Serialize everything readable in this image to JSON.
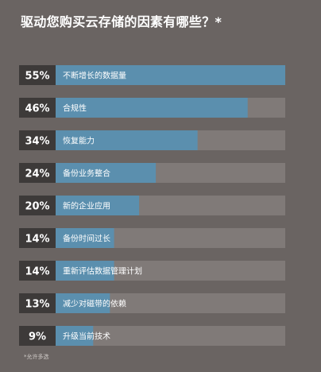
{
  "chart_data": {
    "type": "bar",
    "orientation": "horizontal",
    "title": "驱动您购买云存储的因素有哪些？*",
    "categories": [
      "不断增长的数据量",
      "合规性",
      "恢复能力",
      "备份业务整合",
      "新的企业应用",
      "备份时间过长",
      "重新评估数据管理计划",
      "减少对磁带的依赖",
      "升级当前技术"
    ],
    "values": [
      55,
      46,
      34,
      24,
      20,
      14,
      14,
      13,
      9
    ],
    "value_labels": [
      "55%",
      "46%",
      "34%",
      "24%",
      "20%",
      "14%",
      "14%",
      "13%",
      "9%"
    ],
    "xlim": [
      0,
      55
    ],
    "footnote": "*允许多选",
    "colors": {
      "background": "#6a6462",
      "track": "#807a78",
      "bar": "#5b8fae",
      "value_box": "#3d3a39",
      "text": "#ffffff"
    }
  }
}
